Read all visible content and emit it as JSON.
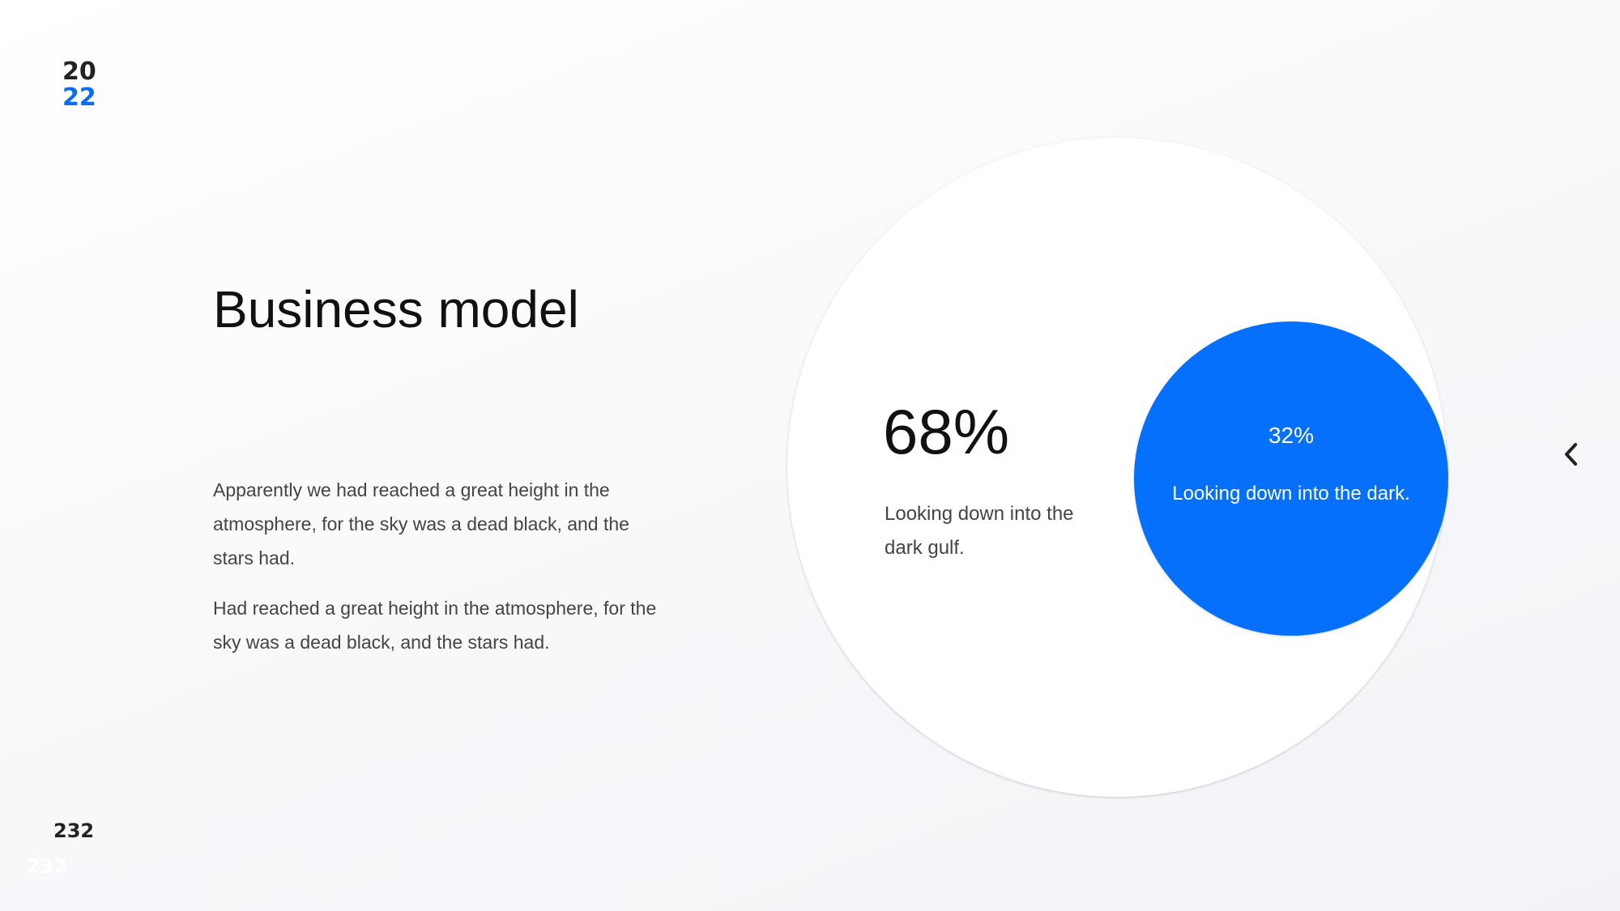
{
  "header": {
    "year_top": "20",
    "year_bottom": "22"
  },
  "slide": {
    "title": "Business model",
    "paragraphs": [
      "Apparently we had reached a great height in the atmosphere, for the sky was a dead black, and the stars had.",
      "Had reached a great height in the atmosphere, for the sky was a dead black, and the stars had."
    ],
    "large_circle": {
      "value": "68%",
      "caption": "Looking down into the dark gulf."
    },
    "small_circle": {
      "value": "32%",
      "caption": "Looking down into the dark."
    }
  },
  "navigation": {
    "icon": "chevron-left-icon"
  },
  "footer": {
    "page_number": "232",
    "page_number_ghost": "232"
  },
  "colors": {
    "accent": "#0570fb",
    "text": "#111111",
    "muted": "#444444"
  }
}
